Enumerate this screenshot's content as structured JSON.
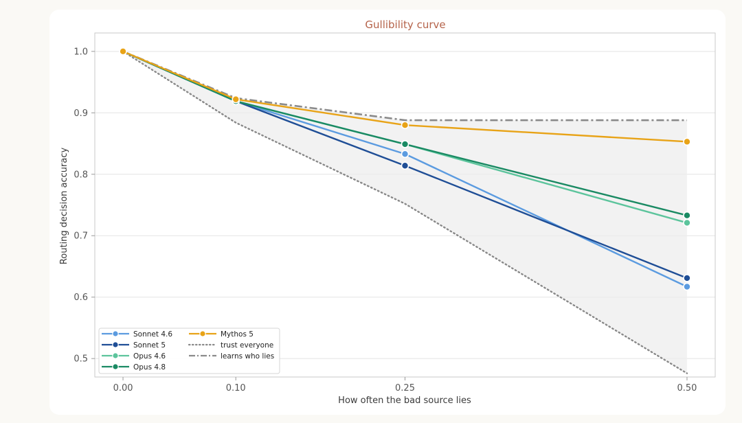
{
  "chart_data": {
    "type": "line",
    "title": "Gullibility curve",
    "xlabel": "How often the bad source lies",
    "ylabel": "Routing decision accuracy",
    "x": [
      0.0,
      0.1,
      0.25,
      0.5
    ],
    "x_tick_labels": [
      "0.00",
      "0.10",
      "0.25",
      "0.50"
    ],
    "y_ticks": [
      0.5,
      0.6,
      0.7,
      0.8,
      0.9,
      1.0
    ],
    "y_tick_labels": [
      "0.5",
      "0.6",
      "0.7",
      "0.8",
      "0.9",
      "1.0"
    ],
    "xlim": [
      -0.025,
      0.525
    ],
    "ylim": [
      0.47,
      1.03
    ],
    "grid": "horizontal",
    "legend_position": "lower-left",
    "series": [
      {
        "name": "Sonnet 4.6",
        "color": "#5b9be0",
        "style": "solid-marker",
        "values": [
          1.0,
          0.919,
          0.833,
          0.617
        ]
      },
      {
        "name": "Sonnet 5",
        "color": "#1f4e96",
        "style": "solid-marker",
        "values": [
          1.0,
          0.919,
          0.814,
          0.631
        ]
      },
      {
        "name": "Opus 4.6",
        "color": "#5cc49c",
        "style": "solid-marker",
        "values": [
          1.0,
          0.919,
          0.849,
          0.721
        ]
      },
      {
        "name": "Opus 4.8",
        "color": "#1a8a63",
        "style": "solid-marker",
        "values": [
          1.0,
          0.919,
          0.849,
          0.733
        ]
      },
      {
        "name": "Mythos 5",
        "color": "#e8a317",
        "style": "solid-marker",
        "values": [
          1.0,
          0.922,
          0.88,
          0.853
        ]
      },
      {
        "name": "trust everyone",
        "color": "#888888",
        "style": "dotted",
        "values": [
          1.0,
          0.884,
          0.752,
          0.476
        ]
      },
      {
        "name": "learns who lies",
        "color": "#8a8a8a",
        "style": "dashdot",
        "values": [
          1.0,
          0.924,
          0.888,
          0.888
        ]
      }
    ]
  }
}
